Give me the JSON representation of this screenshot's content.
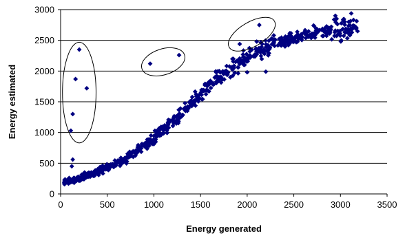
{
  "chart_data": {
    "type": "scatter",
    "title": "",
    "xlabel": "Energy generated",
    "ylabel": "Energy estimated",
    "xlim": [
      0,
      3500
    ],
    "ylim": [
      0,
      3000
    ],
    "x_ticks": [
      0,
      500,
      1000,
      1500,
      2000,
      2500,
      3000,
      3500
    ],
    "y_ticks": [
      0,
      500,
      1000,
      1500,
      2000,
      2500,
      3000
    ],
    "grid": "horizontal",
    "legend": "none",
    "marker": "diamond",
    "marker_color": "#000080",
    "trend": {
      "description": "dense main band of points following an S-shaped curve",
      "x": [
        0,
        100,
        200,
        300,
        400,
        500,
        600,
        700,
        800,
        900,
        1000,
        1100,
        1200,
        1300,
        1400,
        1500,
        1600,
        1700,
        1800,
        1900,
        2000,
        2100,
        2200,
        2300,
        2400,
        2500,
        2600,
        2700,
        2800,
        2900,
        3000,
        3100,
        3200
      ],
      "y": [
        180,
        215,
        260,
        310,
        360,
        420,
        490,
        570,
        670,
        790,
        910,
        1040,
        1180,
        1330,
        1480,
        1620,
        1760,
        1880,
        2000,
        2120,
        2220,
        2310,
        2380,
        2440,
        2490,
        2530,
        2570,
        2610,
        2640,
        2670,
        2700,
        2720,
        2750
      ]
    },
    "outliers": [
      {
        "x": 200,
        "y": 2350
      },
      {
        "x": 160,
        "y": 1870
      },
      {
        "x": 280,
        "y": 1720
      },
      {
        "x": 130,
        "y": 1300
      },
      {
        "x": 110,
        "y": 1030
      },
      {
        "x": 960,
        "y": 2120
      },
      {
        "x": 1270,
        "y": 2260
      },
      {
        "x": 2130,
        "y": 2750
      },
      {
        "x": 1920,
        "y": 2440
      },
      {
        "x": 120,
        "y": 450
      },
      {
        "x": 130,
        "y": 560
      },
      {
        "x": 1700,
        "y": 2000
      },
      {
        "x": 2000,
        "y": 1980
      },
      {
        "x": 2200,
        "y": 1990
      },
      {
        "x": 1900,
        "y": 2160
      }
    ],
    "annotations": [
      {
        "shape": "ellipse",
        "cx": 200,
        "cy": 1650,
        "rx": 180,
        "ry": 820
      },
      {
        "shape": "ellipse",
        "cx": 1100,
        "cy": 2150,
        "rx": 240,
        "ry": 210
      },
      {
        "shape": "ellipse",
        "cx": 2050,
        "cy": 2600,
        "rx": 280,
        "ry": 200
      }
    ]
  }
}
